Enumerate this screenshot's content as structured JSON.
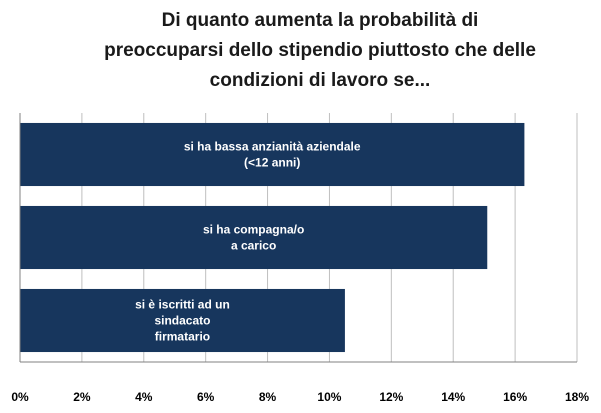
{
  "chart_data": {
    "type": "bar",
    "orientation": "horizontal",
    "title_lines": [
      "Di quanto aumenta la probabilità di",
      "preoccuparsi dello stipendio piuttosto che delle",
      "condizioni di lavoro se..."
    ],
    "categories": [
      [
        "si ha bassa anzianità aziendale",
        "(<12 anni)"
      ],
      [
        "si ha compagna/o",
        "a carico"
      ],
      [
        "si è iscritti ad un",
        "sindacato",
        "firmatario"
      ]
    ],
    "values": [
      16.3,
      15.1,
      10.5
    ],
    "xlim": [
      0,
      18
    ],
    "xticks": [
      "0%",
      "2%",
      "4%",
      "6%",
      "8%",
      "10%",
      "12%",
      "14%",
      "16%",
      "18%"
    ],
    "grid": true,
    "legend": "none",
    "bar_color": "#17365d",
    "grid_color": "#bfbfbf"
  }
}
